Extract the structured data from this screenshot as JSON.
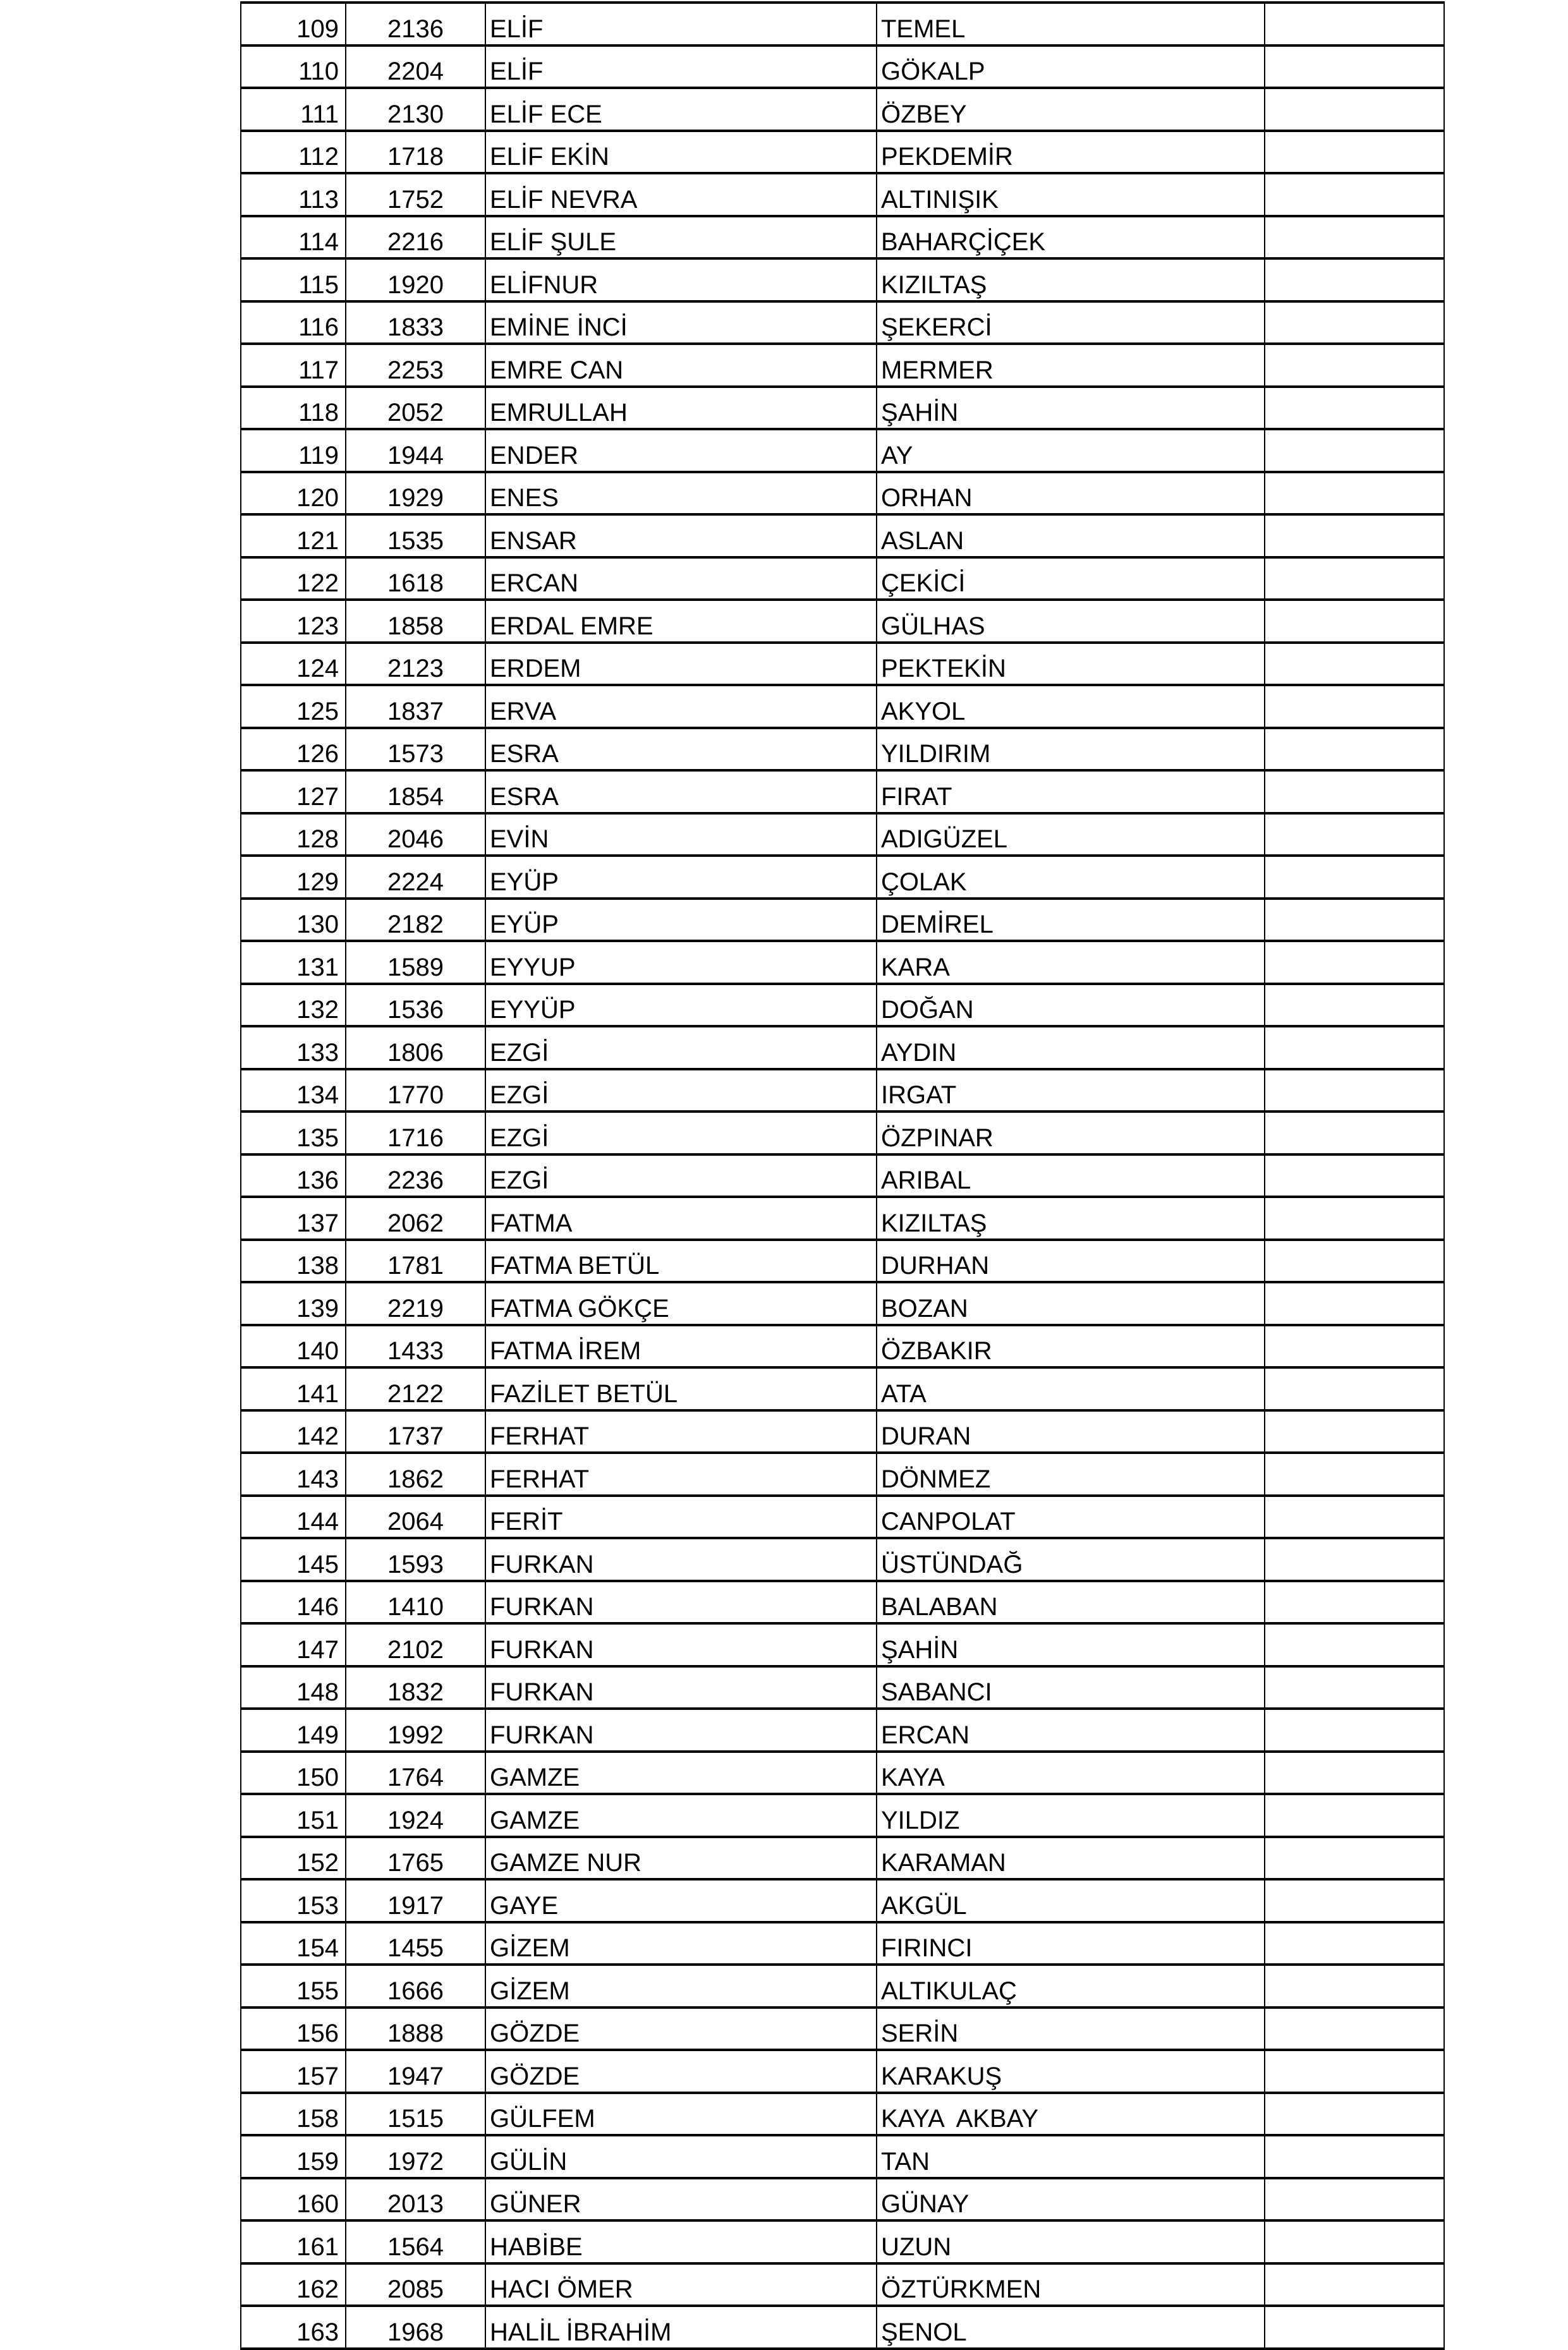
{
  "rows": [
    [
      "109",
      "2136",
      "ELİF",
      "TEMEL",
      ""
    ],
    [
      "110",
      "2204",
      "ELİF",
      "GÖKALP",
      ""
    ],
    [
      "111",
      "2130",
      "ELİF ECE",
      "ÖZBEY",
      ""
    ],
    [
      "112",
      "1718",
      "ELİF EKİN",
      "PEKDEMİR",
      ""
    ],
    [
      "113",
      "1752",
      "ELİF NEVRA",
      "ALTINIŞIK",
      ""
    ],
    [
      "114",
      "2216",
      "ELİF ŞULE",
      "BAHARÇİÇEK",
      ""
    ],
    [
      "115",
      "1920",
      "ELİFNUR",
      "KIZILTAŞ",
      ""
    ],
    [
      "116",
      "1833",
      "EMİNE İNCİ",
      "ŞEKERCİ",
      ""
    ],
    [
      "117",
      "2253",
      "EMRE CAN",
      "MERMER",
      ""
    ],
    [
      "118",
      "2052",
      "EMRULLAH",
      "ŞAHİN",
      ""
    ],
    [
      "119",
      "1944",
      "ENDER",
      "AY",
      ""
    ],
    [
      "120",
      "1929",
      "ENES",
      "ORHAN",
      ""
    ],
    [
      "121",
      "1535",
      "ENSAR",
      "ASLAN",
      ""
    ],
    [
      "122",
      "1618",
      "ERCAN",
      "ÇEKİCİ",
      ""
    ],
    [
      "123",
      "1858",
      "ERDAL EMRE",
      "GÜLHAS",
      ""
    ],
    [
      "124",
      "2123",
      "ERDEM",
      "PEKTEKİN",
      ""
    ],
    [
      "125",
      "1837",
      "ERVA",
      "AKYOL",
      ""
    ],
    [
      "126",
      "1573",
      "ESRA",
      "YILDIRIM",
      ""
    ],
    [
      "127",
      "1854",
      "ESRA",
      "FIRAT",
      ""
    ],
    [
      "128",
      "2046",
      "EVİN",
      "ADIGÜZEL",
      ""
    ],
    [
      "129",
      "2224",
      "EYÜP",
      "ÇOLAK",
      ""
    ],
    [
      "130",
      "2182",
      "EYÜP",
      "DEMİREL",
      ""
    ],
    [
      "131",
      "1589",
      "EYYUP",
      "KARA",
      ""
    ],
    [
      "132",
      "1536",
      "EYYÜP",
      "DOĞAN",
      ""
    ],
    [
      "133",
      "1806",
      "EZGİ",
      "AYDIN",
      ""
    ],
    [
      "134",
      "1770",
      "EZGİ",
      "IRGAT",
      ""
    ],
    [
      "135",
      "1716",
      "EZGİ",
      "ÖZPINAR",
      ""
    ],
    [
      "136",
      "2236",
      "EZGİ",
      "ARIBAL",
      ""
    ],
    [
      "137",
      "2062",
      "FATMA",
      "KIZILTAŞ",
      ""
    ],
    [
      "138",
      "1781",
      "FATMA BETÜL",
      "DURHAN",
      ""
    ],
    [
      "139",
      "2219",
      "FATMA GÖKÇE",
      "BOZAN",
      ""
    ],
    [
      "140",
      "1433",
      "FATMA İREM",
      "ÖZBAKIR",
      ""
    ],
    [
      "141",
      "2122",
      "FAZİLET BETÜL",
      "ATA",
      ""
    ],
    [
      "142",
      "1737",
      "FERHAT",
      "DURAN",
      ""
    ],
    [
      "143",
      "1862",
      "FERHAT",
      "DÖNMEZ",
      ""
    ],
    [
      "144",
      "2064",
      "FERİT",
      "CANPOLAT",
      ""
    ],
    [
      "145",
      "1593",
      "FURKAN",
      "ÜSTÜNDAĞ",
      ""
    ],
    [
      "146",
      "1410",
      "FURKAN",
      "BALABAN",
      ""
    ],
    [
      "147",
      "2102",
      "FURKAN",
      "ŞAHİN",
      ""
    ],
    [
      "148",
      "1832",
      "FURKAN",
      "SABANCI",
      ""
    ],
    [
      "149",
      "1992",
      "FURKAN",
      "ERCAN",
      ""
    ],
    [
      "150",
      "1764",
      "GAMZE",
      "KAYA",
      ""
    ],
    [
      "151",
      "1924",
      "GAMZE",
      "YILDIZ",
      ""
    ],
    [
      "152",
      "1765",
      "GAMZE NUR",
      "KARAMAN",
      ""
    ],
    [
      "153",
      "1917",
      "GAYE",
      "AKGÜL",
      ""
    ],
    [
      "154",
      "1455",
      "GİZEM",
      "FIRINCI",
      ""
    ],
    [
      "155",
      "1666",
      "GİZEM",
      "ALTIKULAÇ",
      ""
    ],
    [
      "156",
      "1888",
      "GÖZDE",
      "SERİN",
      ""
    ],
    [
      "157",
      "1947",
      "GÖZDE",
      "KARAKUŞ",
      ""
    ],
    [
      "158",
      "1515",
      "GÜLFEM",
      "KAYA  AKBAY",
      ""
    ],
    [
      "159",
      "1972",
      "GÜLİN",
      "TAN",
      ""
    ],
    [
      "160",
      "2013",
      "GÜNER",
      "GÜNAY",
      ""
    ],
    [
      "161",
      "1564",
      "HABİBE",
      "UZUN",
      ""
    ],
    [
      "162",
      "2085",
      "HACI ÖMER",
      "ÖZTÜRKMEN",
      ""
    ],
    [
      "163",
      "1968",
      "HALİL İBRAHİM",
      "ŞENOL",
      ""
    ]
  ]
}
